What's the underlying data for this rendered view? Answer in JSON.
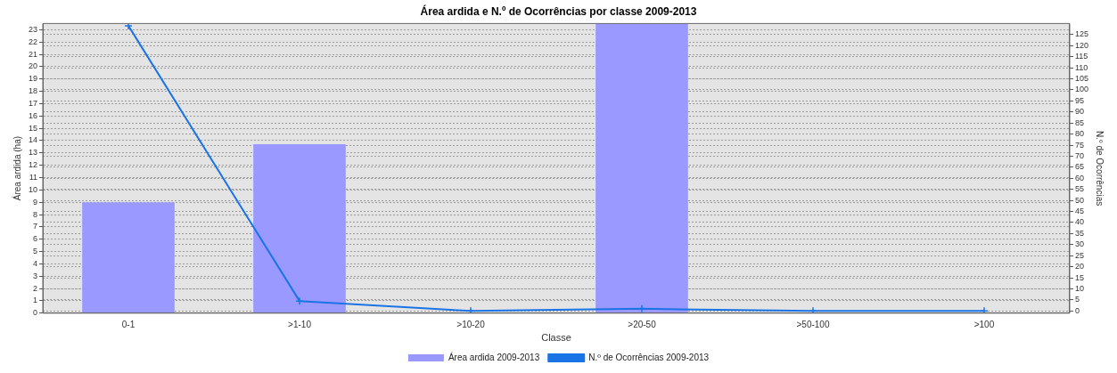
{
  "chart_data": {
    "type": "bar",
    "title": "Área ardida e N.º de Ocorrências por classe 2009-2013",
    "xlabel": "Classe",
    "ylabel": "Área ardida (ha)",
    "y2label": "N.º de Ocorrências",
    "categories": [
      "0-1",
      ">1-10",
      ">10-20",
      ">20-50",
      ">50-100",
      ">100"
    ],
    "series": [
      {
        "name": "Área ardida 2009-2013",
        "color": "#9999ff",
        "values": [
          9,
          13.7,
          0,
          23.5,
          0,
          0
        ]
      },
      {
        "name": "N.º de Ocorrências 2009-2013",
        "type": "line",
        "axis": "y2",
        "color": "#1a74e6",
        "marker": "cross",
        "values": [
          129,
          4.5,
          0,
          1,
          0,
          0
        ]
      }
    ],
    "ylim": [
      0,
      23.5
    ],
    "yticks": [
      0,
      1,
      2,
      3,
      4,
      5,
      6,
      7,
      8,
      9,
      10,
      11,
      12,
      13,
      14,
      15,
      16,
      17,
      18,
      19,
      20,
      21,
      22,
      23
    ],
    "y2lim": [
      -1,
      130
    ],
    "y2ticks": [
      0,
      5,
      10,
      15,
      20,
      25,
      30,
      35,
      40,
      45,
      50,
      55,
      60,
      65,
      70,
      75,
      80,
      85,
      90,
      95,
      100,
      105,
      110,
      115,
      120,
      125
    ],
    "grid": "y",
    "legend": "bottom"
  }
}
